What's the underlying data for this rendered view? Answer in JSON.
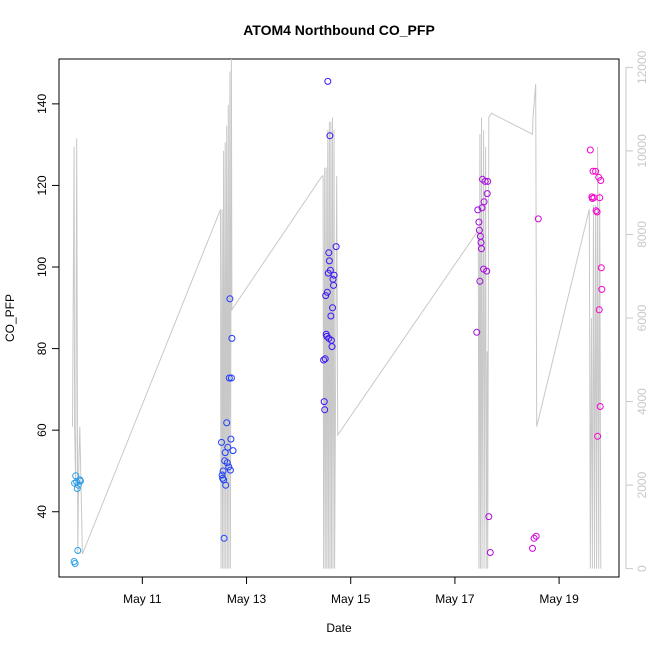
{
  "chart_data": {
    "type": "scatter",
    "title": "ATOM4 Northbound CO_PFP",
    "xlabel": "Date",
    "ylabel": "CO_PFP",
    "x_unit": "days since May 9, 00:00",
    "x_ticks": [
      {
        "value": 2,
        "label": "May 11"
      },
      {
        "value": 4,
        "label": "May 13"
      },
      {
        "value": 6,
        "label": "May 15"
      },
      {
        "value": 8,
        "label": "May 17"
      },
      {
        "value": 10,
        "label": "May 19"
      }
    ],
    "xlim": [
      0.4,
      11.15
    ],
    "ylim": [
      24,
      151
    ],
    "y_ticks": [
      40,
      60,
      80,
      100,
      120,
      140
    ],
    "y2lim": [
      -200,
      12200
    ],
    "y2_ticks": [
      0,
      2000,
      4000,
      6000,
      8000,
      10000,
      12000
    ],
    "colors": {
      "line": "#c8c8c8",
      "axis": "#000000",
      "secondary_axis": "#c8c8c8",
      "point_start": "#29a3e6",
      "point_mid": "#1a1aff",
      "point_end": "#ff00cc"
    },
    "grid": false,
    "legend": "none",
    "points": [
      {
        "x": 0.7,
        "y": 47.0
      },
      {
        "x": 0.72,
        "y": 48.8
      },
      {
        "x": 0.74,
        "y": 47.3
      },
      {
        "x": 0.75,
        "y": 45.7
      },
      {
        "x": 0.77,
        "y": 46.5
      },
      {
        "x": 0.8,
        "y": 47.8
      },
      {
        "x": 0.81,
        "y": 47.5
      },
      {
        "x": 0.69,
        "y": 27.8
      },
      {
        "x": 0.71,
        "y": 27.3
      },
      {
        "x": 0.76,
        "y": 30.5
      },
      {
        "x": 3.52,
        "y": 57.0
      },
      {
        "x": 3.53,
        "y": 49.0
      },
      {
        "x": 3.54,
        "y": 48.2
      },
      {
        "x": 3.55,
        "y": 50.0
      },
      {
        "x": 3.56,
        "y": 47.8
      },
      {
        "x": 3.57,
        "y": 33.5
      },
      {
        "x": 3.58,
        "y": 52.5
      },
      {
        "x": 3.59,
        "y": 54.5
      },
      {
        "x": 3.6,
        "y": 46.5
      },
      {
        "x": 3.62,
        "y": 61.8
      },
      {
        "x": 3.63,
        "y": 52.0
      },
      {
        "x": 3.64,
        "y": 55.8
      },
      {
        "x": 3.66,
        "y": 51.0
      },
      {
        "x": 3.68,
        "y": 92.2
      },
      {
        "x": 3.69,
        "y": 50.2
      },
      {
        "x": 3.7,
        "y": 57.8
      },
      {
        "x": 3.72,
        "y": 82.5
      },
      {
        "x": 3.74,
        "y": 55.0
      },
      {
        "x": 3.67,
        "y": 72.8
      },
      {
        "x": 3.71,
        "y": 72.8
      },
      {
        "x": 5.48,
        "y": 77.2
      },
      {
        "x": 5.49,
        "y": 67.0
      },
      {
        "x": 5.5,
        "y": 65.0
      },
      {
        "x": 5.51,
        "y": 77.5
      },
      {
        "x": 5.52,
        "y": 93.0
      },
      {
        "x": 5.53,
        "y": 83.5
      },
      {
        "x": 5.54,
        "y": 83.0
      },
      {
        "x": 5.55,
        "y": 93.8
      },
      {
        "x": 5.56,
        "y": 145.5
      },
      {
        "x": 5.57,
        "y": 98.5
      },
      {
        "x": 5.58,
        "y": 103.5
      },
      {
        "x": 5.59,
        "y": 101.5
      },
      {
        "x": 5.6,
        "y": 132.2
      },
      {
        "x": 5.61,
        "y": 99.2
      },
      {
        "x": 5.62,
        "y": 88.0
      },
      {
        "x": 5.63,
        "y": 82.0
      },
      {
        "x": 5.64,
        "y": 80.5
      },
      {
        "x": 5.65,
        "y": 90.0
      },
      {
        "x": 5.66,
        "y": 97.0
      },
      {
        "x": 5.67,
        "y": 95.5
      },
      {
        "x": 5.68,
        "y": 98.0
      },
      {
        "x": 5.72,
        "y": 105.0
      },
      {
        "x": 5.58,
        "y": 82.5
      },
      {
        "x": 8.42,
        "y": 84.0
      },
      {
        "x": 8.44,
        "y": 114.0
      },
      {
        "x": 8.46,
        "y": 111.0
      },
      {
        "x": 8.47,
        "y": 109.0
      },
      {
        "x": 8.48,
        "y": 96.5
      },
      {
        "x": 8.49,
        "y": 107.5
      },
      {
        "x": 8.5,
        "y": 106.0
      },
      {
        "x": 8.51,
        "y": 104.5
      },
      {
        "x": 8.52,
        "y": 114.5
      },
      {
        "x": 8.53,
        "y": 121.5
      },
      {
        "x": 8.55,
        "y": 99.5
      },
      {
        "x": 8.56,
        "y": 116.0
      },
      {
        "x": 8.58,
        "y": 121.0
      },
      {
        "x": 8.61,
        "y": 99.0
      },
      {
        "x": 8.62,
        "y": 118.0
      },
      {
        "x": 8.63,
        "y": 121.0
      },
      {
        "x": 8.65,
        "y": 38.8
      },
      {
        "x": 8.68,
        "y": 30.0
      },
      {
        "x": 9.49,
        "y": 31.0
      },
      {
        "x": 9.52,
        "y": 33.5
      },
      {
        "x": 9.56,
        "y": 34.0
      },
      {
        "x": 9.6,
        "y": 111.8
      },
      {
        "x": 10.6,
        "y": 128.7
      },
      {
        "x": 10.63,
        "y": 117.2
      },
      {
        "x": 10.64,
        "y": 116.8
      },
      {
        "x": 10.65,
        "y": 123.5
      },
      {
        "x": 10.67,
        "y": 117.0
      },
      {
        "x": 10.7,
        "y": 123.5
      },
      {
        "x": 10.71,
        "y": 113.8
      },
      {
        "x": 10.73,
        "y": 113.5
      },
      {
        "x": 10.74,
        "y": 58.5
      },
      {
        "x": 10.76,
        "y": 122.0
      },
      {
        "x": 10.77,
        "y": 89.5
      },
      {
        "x": 10.78,
        "y": 117.0
      },
      {
        "x": 10.79,
        "y": 65.8
      },
      {
        "x": 10.8,
        "y": 121.2
      },
      {
        "x": 10.81,
        "y": 99.8
      },
      {
        "x": 10.82,
        "y": 94.5
      }
    ],
    "time_series_y2": [
      [
        0.66,
        3400
      ],
      [
        0.69,
        10100
      ],
      [
        0.7,
        3400
      ],
      [
        0.72,
        2000
      ],
      [
        0.74,
        10300
      ],
      [
        0.76,
        350
      ],
      [
        0.78,
        2500
      ],
      [
        0.8,
        3400
      ],
      [
        0.85,
        350
      ],
      [
        3.5,
        8600
      ],
      [
        3.51,
        0
      ],
      [
        3.53,
        8600
      ],
      [
        3.54,
        0
      ],
      [
        3.56,
        10000
      ],
      [
        3.57,
        0
      ],
      [
        3.59,
        10200
      ],
      [
        3.6,
        0
      ],
      [
        3.62,
        10600
      ],
      [
        3.63,
        0
      ],
      [
        3.65,
        11100
      ],
      [
        3.66,
        0
      ],
      [
        3.68,
        11900
      ],
      [
        3.69,
        0
      ],
      [
        3.71,
        12200
      ],
      [
        3.72,
        6200
      ],
      [
        5.45,
        9400
      ],
      [
        5.47,
        9400
      ],
      [
        5.48,
        0
      ],
      [
        5.5,
        9600
      ],
      [
        5.51,
        0
      ],
      [
        5.53,
        9600
      ],
      [
        5.54,
        0
      ],
      [
        5.56,
        10500
      ],
      [
        5.57,
        0
      ],
      [
        5.59,
        10700
      ],
      [
        5.6,
        0
      ],
      [
        5.62,
        10700
      ],
      [
        5.63,
        0
      ],
      [
        5.65,
        10800
      ],
      [
        5.66,
        0
      ],
      [
        5.68,
        10500
      ],
      [
        5.69,
        0
      ],
      [
        5.73,
        9400
      ],
      [
        5.75,
        3200
      ],
      [
        8.45,
        8100
      ],
      [
        8.46,
        0
      ],
      [
        8.48,
        10400
      ],
      [
        8.49,
        0
      ],
      [
        8.51,
        10800
      ],
      [
        8.52,
        0
      ],
      [
        8.55,
        10500
      ],
      [
        8.56,
        0
      ],
      [
        8.59,
        10100
      ],
      [
        8.6,
        0
      ],
      [
        8.62,
        5200
      ],
      [
        8.63,
        0
      ],
      [
        8.65,
        10800
      ],
      [
        8.7,
        10900
      ],
      [
        9.49,
        10400
      ],
      [
        9.5,
        10800
      ],
      [
        9.55,
        11600
      ],
      [
        9.57,
        3400
      ],
      [
        10.58,
        8600
      ],
      [
        10.6,
        0
      ],
      [
        10.62,
        6000
      ],
      [
        10.64,
        0
      ],
      [
        10.66,
        8700
      ],
      [
        10.68,
        0
      ],
      [
        10.7,
        8700
      ],
      [
        10.72,
        0
      ],
      [
        10.74,
        10100
      ],
      [
        10.76,
        0
      ],
      [
        10.78,
        9000
      ],
      [
        10.8,
        0
      ]
    ]
  }
}
